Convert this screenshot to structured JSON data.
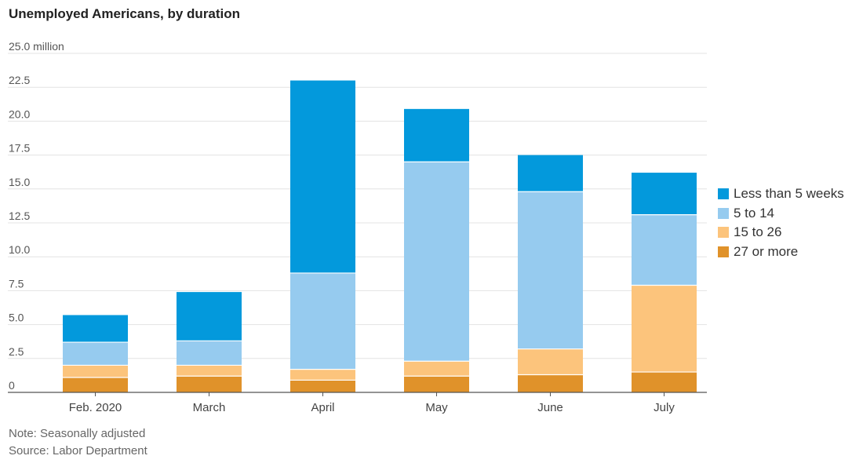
{
  "chart_data": {
    "type": "bar",
    "stacked": true,
    "title": "Unemployed Americans, by duration",
    "ylabel": "",
    "xlabel": "",
    "ylim": [
      0,
      25
    ],
    "ytick_labels": [
      "0",
      "2.5",
      "5.0",
      "7.5",
      "10.0",
      "12.5",
      "15.0",
      "17.5",
      "20.0",
      "22.5",
      "25.0 million"
    ],
    "ytick_values": [
      0,
      2.5,
      5,
      7.5,
      10,
      12.5,
      15,
      17.5,
      20,
      22.5,
      25
    ],
    "grid": true,
    "legend_position": "right",
    "categories": [
      "Feb. 2020",
      "March",
      "April",
      "May",
      "June",
      "July"
    ],
    "series": [
      {
        "name": "27 or more",
        "color": "#e0922a",
        "values": [
          1.1,
          1.2,
          0.9,
          1.2,
          1.3,
          1.5
        ]
      },
      {
        "name": "15 to 26",
        "color": "#fcc47c",
        "values": [
          0.9,
          0.8,
          0.8,
          1.1,
          1.9,
          6.4
        ]
      },
      {
        "name": "5 to 14",
        "color": "#96cbef",
        "values": [
          1.7,
          1.8,
          7.1,
          14.7,
          11.6,
          5.2
        ]
      },
      {
        "name": "Less than 5 weeks",
        "color": "#0399dc",
        "values": [
          2.0,
          3.6,
          14.2,
          3.9,
          2.7,
          3.1
        ]
      }
    ],
    "legend_order": [
      "Less than 5 weeks",
      "5 to 14",
      "15 to 26",
      "27 or more"
    ]
  },
  "footer": {
    "note": "Note: Seasonally adjusted",
    "source": "Source: Labor Department"
  }
}
